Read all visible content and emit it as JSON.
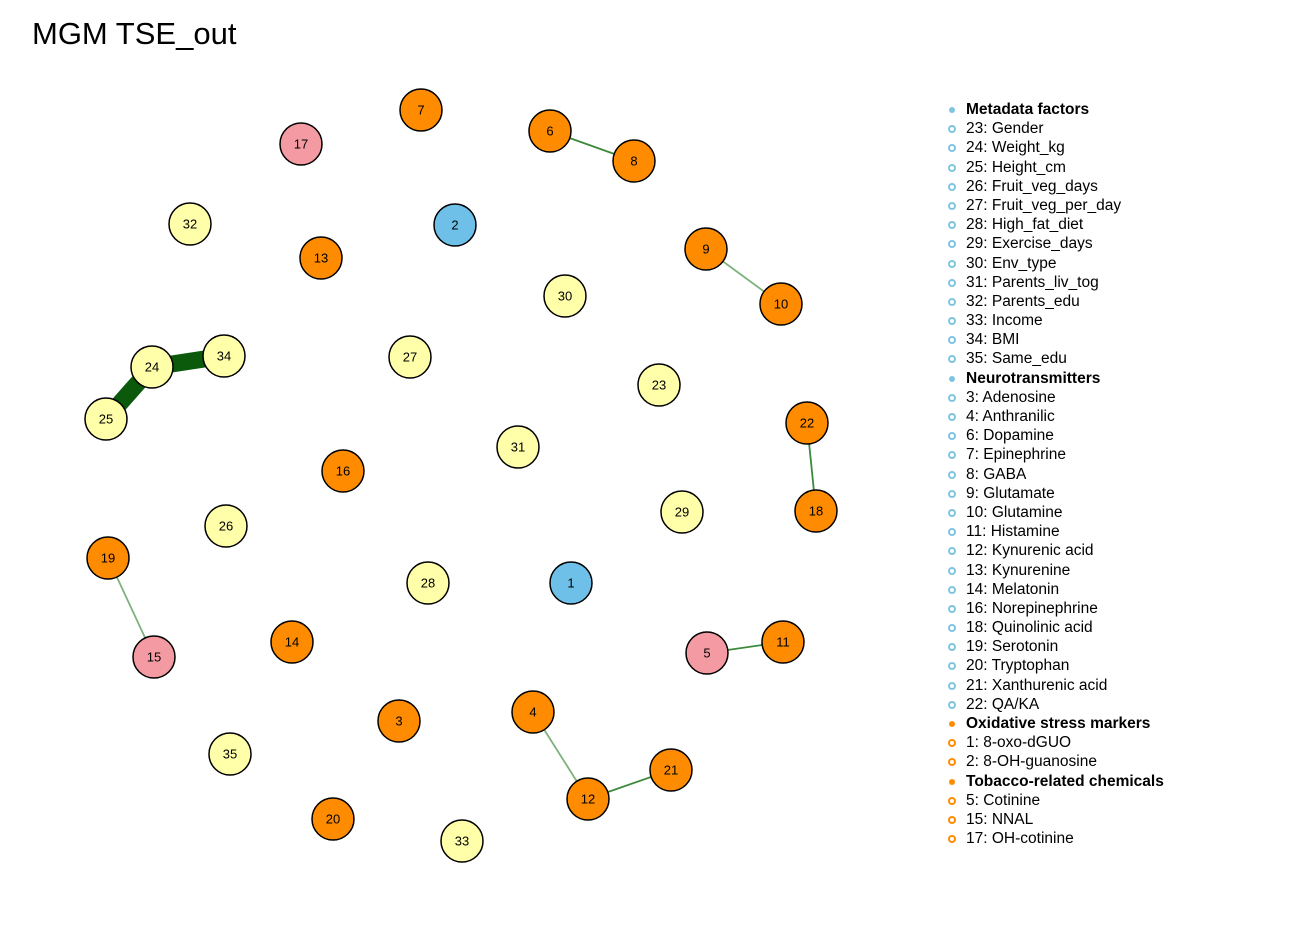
{
  "title": "MGM TSE_out",
  "colors": {
    "metadata": "#FFFFAA",
    "neurotransmitters": "#FF8C00",
    "oxidative": "#6EC0E8",
    "tobacco": "#F49AA3",
    "legend_blue": "#7EC5E2",
    "legend_orange": "#FF8C00",
    "edge_dark": "#0B5A0B",
    "edge_mid": "#3C8A3C",
    "edge_light": "#7DB27D"
  },
  "nodes": [
    {
      "id": "1",
      "group": "oxidative"
    },
    {
      "id": "2",
      "group": "oxidative"
    },
    {
      "id": "3",
      "group": "neurotransmitters"
    },
    {
      "id": "4",
      "group": "neurotransmitters"
    },
    {
      "id": "5",
      "group": "tobacco"
    },
    {
      "id": "6",
      "group": "neurotransmitters"
    },
    {
      "id": "7",
      "group": "neurotransmitters"
    },
    {
      "id": "8",
      "group": "neurotransmitters"
    },
    {
      "id": "9",
      "group": "neurotransmitters"
    },
    {
      "id": "10",
      "group": "neurotransmitters"
    },
    {
      "id": "11",
      "group": "neurotransmitters"
    },
    {
      "id": "12",
      "group": "neurotransmitters"
    },
    {
      "id": "13",
      "group": "neurotransmitters"
    },
    {
      "id": "14",
      "group": "neurotransmitters"
    },
    {
      "id": "15",
      "group": "tobacco"
    },
    {
      "id": "16",
      "group": "neurotransmitters"
    },
    {
      "id": "17",
      "group": "tobacco"
    },
    {
      "id": "18",
      "group": "neurotransmitters"
    },
    {
      "id": "19",
      "group": "neurotransmitters"
    },
    {
      "id": "20",
      "group": "neurotransmitters"
    },
    {
      "id": "21",
      "group": "neurotransmitters"
    },
    {
      "id": "22",
      "group": "neurotransmitters"
    },
    {
      "id": "23",
      "group": "metadata"
    },
    {
      "id": "24",
      "group": "metadata"
    },
    {
      "id": "25",
      "group": "metadata"
    },
    {
      "id": "26",
      "group": "metadata"
    },
    {
      "id": "27",
      "group": "metadata"
    },
    {
      "id": "28",
      "group": "metadata"
    },
    {
      "id": "29",
      "group": "metadata"
    },
    {
      "id": "30",
      "group": "metadata"
    },
    {
      "id": "31",
      "group": "metadata"
    },
    {
      "id": "32",
      "group": "metadata"
    },
    {
      "id": "33",
      "group": "metadata"
    },
    {
      "id": "34",
      "group": "metadata"
    },
    {
      "id": "35",
      "group": "metadata"
    }
  ],
  "edges": [
    {
      "source": "24",
      "target": "34",
      "strength": "strong"
    },
    {
      "source": "24",
      "target": "25",
      "strength": "strong"
    },
    {
      "source": "6",
      "target": "8",
      "strength": "medium"
    },
    {
      "source": "9",
      "target": "10",
      "strength": "weak"
    },
    {
      "source": "22",
      "target": "18",
      "strength": "medium"
    },
    {
      "source": "19",
      "target": "15",
      "strength": "weak"
    },
    {
      "source": "5",
      "target": "11",
      "strength": "medium"
    },
    {
      "source": "4",
      "target": "12",
      "strength": "weak"
    },
    {
      "source": "12",
      "target": "21",
      "strength": "medium"
    }
  ],
  "legend": [
    {
      "label": "Metadata factors",
      "type": "header",
      "color": "legend_blue"
    },
    {
      "label": "23: Gender",
      "type": "item",
      "color": "legend_blue"
    },
    {
      "label": "24: Weight_kg",
      "type": "item",
      "color": "legend_blue"
    },
    {
      "label": "25: Height_cm",
      "type": "item",
      "color": "legend_blue"
    },
    {
      "label": "26: Fruit_veg_days",
      "type": "item",
      "color": "legend_blue"
    },
    {
      "label": "27: Fruit_veg_per_day",
      "type": "item",
      "color": "legend_blue"
    },
    {
      "label": "28: High_fat_diet",
      "type": "item",
      "color": "legend_blue"
    },
    {
      "label": "29: Exercise_days",
      "type": "item",
      "color": "legend_blue"
    },
    {
      "label": "30: Env_type",
      "type": "item",
      "color": "legend_blue"
    },
    {
      "label": "31: Parents_liv_tog",
      "type": "item",
      "color": "legend_blue"
    },
    {
      "label": "32: Parents_edu",
      "type": "item",
      "color": "legend_blue"
    },
    {
      "label": "33: Income",
      "type": "item",
      "color": "legend_blue"
    },
    {
      "label": "34: BMI",
      "type": "item",
      "color": "legend_blue"
    },
    {
      "label": "35: Same_edu",
      "type": "item",
      "color": "legend_blue"
    },
    {
      "label": "Neurotransmitters",
      "type": "header",
      "color": "legend_blue"
    },
    {
      "label": "3: Adenosine",
      "type": "item",
      "color": "legend_blue"
    },
    {
      "label": "4: Anthranilic",
      "type": "item",
      "color": "legend_blue"
    },
    {
      "label": "6: Dopamine",
      "type": "item",
      "color": "legend_blue"
    },
    {
      "label": "7: Epinephrine",
      "type": "item",
      "color": "legend_blue"
    },
    {
      "label": "8: GABA",
      "type": "item",
      "color": "legend_blue"
    },
    {
      "label": "9: Glutamate",
      "type": "item",
      "color": "legend_blue"
    },
    {
      "label": "10: Glutamine",
      "type": "item",
      "color": "legend_blue"
    },
    {
      "label": "11: Histamine",
      "type": "item",
      "color": "legend_blue"
    },
    {
      "label": "12: Kynurenic acid",
      "type": "item",
      "color": "legend_blue"
    },
    {
      "label": "13: Kynurenine",
      "type": "item",
      "color": "legend_blue"
    },
    {
      "label": "14: Melatonin",
      "type": "item",
      "color": "legend_blue"
    },
    {
      "label": "16: Norepinephrine",
      "type": "item",
      "color": "legend_blue"
    },
    {
      "label": "18: Quinolinic acid",
      "type": "item",
      "color": "legend_blue"
    },
    {
      "label": "19: Serotonin",
      "type": "item",
      "color": "legend_blue"
    },
    {
      "label": "20: Tryptophan",
      "type": "item",
      "color": "legend_blue"
    },
    {
      "label": "21: Xanthurenic acid",
      "type": "item",
      "color": "legend_blue"
    },
    {
      "label": "22: QA/KA",
      "type": "item",
      "color": "legend_blue"
    },
    {
      "label": "Oxidative stress markers",
      "type": "header",
      "color": "legend_orange"
    },
    {
      "label": "1: 8-oxo-dGUO",
      "type": "item",
      "color": "legend_orange"
    },
    {
      "label": "2: 8-OH-guanosine",
      "type": "item",
      "color": "legend_orange"
    },
    {
      "label": "Tobacco-related chemicals",
      "type": "header",
      "color": "legend_orange"
    },
    {
      "label": "5: Cotinine",
      "type": "item",
      "color": "legend_orange"
    },
    {
      "label": "15: NNAL",
      "type": "item",
      "color": "legend_orange"
    },
    {
      "label": "17: OH-cotinine",
      "type": "item",
      "color": "legend_orange"
    }
  ]
}
